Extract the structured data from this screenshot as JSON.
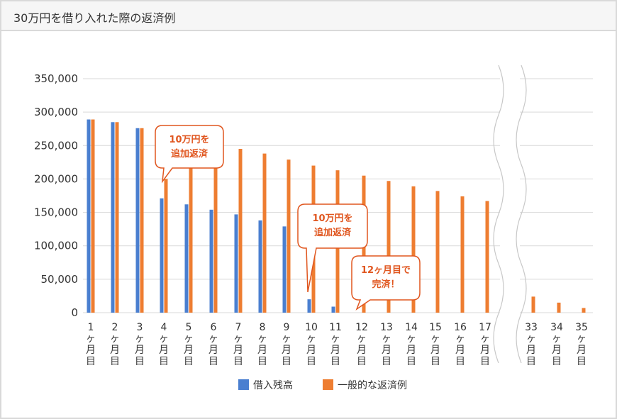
{
  "header": {
    "title": "30万円を借り入れた際の返済例"
  },
  "colors": {
    "loan_balance": "#4a7fd0",
    "typical": "#ee7d31",
    "callout": "#e0561f",
    "grid": "#d9d9d9"
  },
  "chart_data": {
    "type": "bar",
    "title": "30万円を借り入れた際の返済例",
    "xlabel": "",
    "ylabel": "",
    "ylim": [
      0,
      350000
    ],
    "yticks": [
      "350,000",
      "300,000",
      "250,000",
      "200,000",
      "150,000",
      "100,000",
      "50,000",
      "0"
    ],
    "axis_break_after": "17ヶ月目",
    "categories": [
      {
        "num": "1",
        "label": "1ヶ月目"
      },
      {
        "num": "2",
        "label": "2ヶ月目"
      },
      {
        "num": "3",
        "label": "3ヶ月目"
      },
      {
        "num": "4",
        "label": "4ヶ月目"
      },
      {
        "num": "5",
        "label": "5ヶ月目"
      },
      {
        "num": "6",
        "label": "6ヶ月目"
      },
      {
        "num": "7",
        "label": "7ヶ月目"
      },
      {
        "num": "8",
        "label": "8ヶ月目"
      },
      {
        "num": "9",
        "label": "9ヶ月目"
      },
      {
        "num": "10",
        "label": "10ヶ月目"
      },
      {
        "num": "11",
        "label": "11ヶ月目"
      },
      {
        "num": "12",
        "label": "12ヶ月目"
      },
      {
        "num": "13",
        "label": "13ヶ月目"
      },
      {
        "num": "14",
        "label": "14ヶ月目"
      },
      {
        "num": "15",
        "label": "15ヶ月目"
      },
      {
        "num": "16",
        "label": "16ヶ月目"
      },
      {
        "num": "17",
        "label": "17ヶ月目"
      },
      {
        "num": "33",
        "label": "33ヶ月目"
      },
      {
        "num": "34",
        "label": "34ヶ月目"
      },
      {
        "num": "35",
        "label": "35ヶ月目"
      }
    ],
    "series": [
      {
        "name": "借入残高",
        "values": [
          289000,
          285000,
          276000,
          171000,
          162000,
          154000,
          147000,
          138000,
          129000,
          20000,
          9000,
          0,
          null,
          null,
          null,
          null,
          null,
          null,
          null,
          null
        ]
      },
      {
        "name": "一般的な返済例",
        "values": [
          289000,
          285000,
          276000,
          200000,
          230000,
          225000,
          245000,
          238000,
          229000,
          220000,
          213000,
          205000,
          197000,
          189000,
          182000,
          174000,
          167000,
          24000,
          15000,
          7000
        ]
      }
    ],
    "legend": "bottom-center",
    "grid": true,
    "annotations": [
      {
        "at": "4ヶ月目",
        "lines": [
          "10万円を",
          "追加返済"
        ]
      },
      {
        "at": "10ヶ月目",
        "lines": [
          "10万円を",
          "追加返済"
        ]
      },
      {
        "at": "12ヶ月目",
        "lines": [
          "12ヶ月目で",
          "完済！"
        ]
      }
    ]
  }
}
